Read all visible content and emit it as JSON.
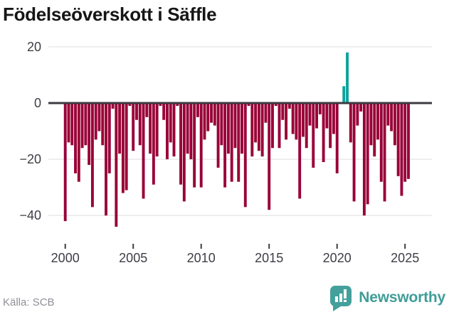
{
  "title": "Födelseöverskott i Säffle",
  "source": "Källa: SCB",
  "logo": {
    "brand": "Newsworthy",
    "icon": "bar-chart-speech-bubble-icon"
  },
  "colors": {
    "negative_bar": "#990037",
    "positive_bar": "#0aa39c",
    "zero_axis": "#3b3b40",
    "grid": "#e9e9ec",
    "tick_label": "#3d3d46",
    "title_text": "#161616",
    "source_text": "#8f8f97",
    "brand_teal": "#3f9d98"
  },
  "chart_data": {
    "type": "bar",
    "title": "Födelseöverskott i Säffle",
    "frequency": "quarterly",
    "start": "2000 Q1",
    "end": "2025 Q2",
    "grid": "horizontal",
    "legend": "none",
    "ylim": [
      -47,
      26
    ],
    "y_ticks": [
      20,
      0,
      -20,
      -40
    ],
    "y_tick_labels": [
      "20",
      "0",
      "−20",
      "−40"
    ],
    "x_tick_years": [
      2000,
      2005,
      2010,
      2015,
      2020,
      2025
    ],
    "x_tick_labels": [
      "2000",
      "2005",
      "2010",
      "2015",
      "2020",
      "2025"
    ],
    "series": [
      {
        "name": "Födelseöverskott",
        "quarters": [
          "2000 Q1",
          "2000 Q2",
          "2000 Q3",
          "2000 Q4",
          "2001 Q1",
          "2001 Q2",
          "2001 Q3",
          "2001 Q4",
          "2002 Q1",
          "2002 Q2",
          "2002 Q3",
          "2002 Q4",
          "2003 Q1",
          "2003 Q2",
          "2003 Q3",
          "2003 Q4",
          "2004 Q1",
          "2004 Q2",
          "2004 Q3",
          "2004 Q4",
          "2005 Q1",
          "2005 Q2",
          "2005 Q3",
          "2005 Q4",
          "2006 Q1",
          "2006 Q2",
          "2006 Q3",
          "2006 Q4",
          "2007 Q1",
          "2007 Q2",
          "2007 Q3",
          "2007 Q4",
          "2008 Q1",
          "2008 Q2",
          "2008 Q3",
          "2008 Q4",
          "2009 Q1",
          "2009 Q2",
          "2009 Q3",
          "2009 Q4",
          "2010 Q1",
          "2010 Q2",
          "2010 Q3",
          "2010 Q4",
          "2011 Q1",
          "2011 Q2",
          "2011 Q3",
          "2011 Q4",
          "2012 Q1",
          "2012 Q2",
          "2012 Q3",
          "2012 Q4",
          "2013 Q1",
          "2013 Q2",
          "2013 Q3",
          "2013 Q4",
          "2014 Q1",
          "2014 Q2",
          "2014 Q3",
          "2014 Q4",
          "2015 Q1",
          "2015 Q2",
          "2015 Q3",
          "2015 Q4",
          "2016 Q1",
          "2016 Q2",
          "2016 Q3",
          "2016 Q4",
          "2017 Q1",
          "2017 Q2",
          "2017 Q3",
          "2017 Q4",
          "2018 Q1",
          "2018 Q2",
          "2018 Q3",
          "2018 Q4",
          "2019 Q1",
          "2019 Q2",
          "2019 Q3",
          "2019 Q4",
          "2020 Q1",
          "2020 Q2",
          "2020 Q3",
          "2020 Q4",
          "2021 Q1",
          "2021 Q2",
          "2021 Q3",
          "2021 Q4",
          "2022 Q1",
          "2022 Q2",
          "2022 Q3",
          "2022 Q4",
          "2023 Q1",
          "2023 Q2",
          "2023 Q3",
          "2023 Q4",
          "2024 Q1",
          "2024 Q2",
          "2024 Q3",
          "2024 Q4",
          "2025 Q1",
          "2025 Q2"
        ],
        "values": [
          -42,
          -14,
          -15,
          -25,
          -28,
          -16,
          -15,
          -22,
          -37,
          -13,
          -10,
          -15,
          -40,
          -25,
          -2,
          -44,
          -18,
          -32,
          -31,
          -1,
          -17,
          -6,
          -15,
          -34,
          -5,
          -18,
          -29,
          -19,
          -1,
          -6,
          -20,
          -14,
          -19,
          -1,
          -29,
          -35,
          -18,
          -20,
          -30,
          -5,
          -30,
          -13,
          -10,
          -7,
          -8,
          -23,
          -15,
          -30,
          -18,
          -28,
          -16,
          -28,
          -18,
          -37,
          -1,
          -19,
          -14,
          -17,
          -19,
          -7,
          -38,
          -16,
          -1,
          -16,
          -6,
          -13,
          -2,
          -11,
          -13,
          -34,
          -12,
          -16,
          -8,
          -23,
          -9,
          -4,
          -21,
          -9,
          -16,
          -11,
          -25,
          0,
          6,
          18,
          -14,
          -35,
          -8,
          -3,
          -40,
          -36,
          -15,
          -19,
          -13,
          -28,
          -35,
          -8,
          -10,
          -15,
          -26,
          -33,
          -28,
          -27
        ]
      }
    ]
  }
}
